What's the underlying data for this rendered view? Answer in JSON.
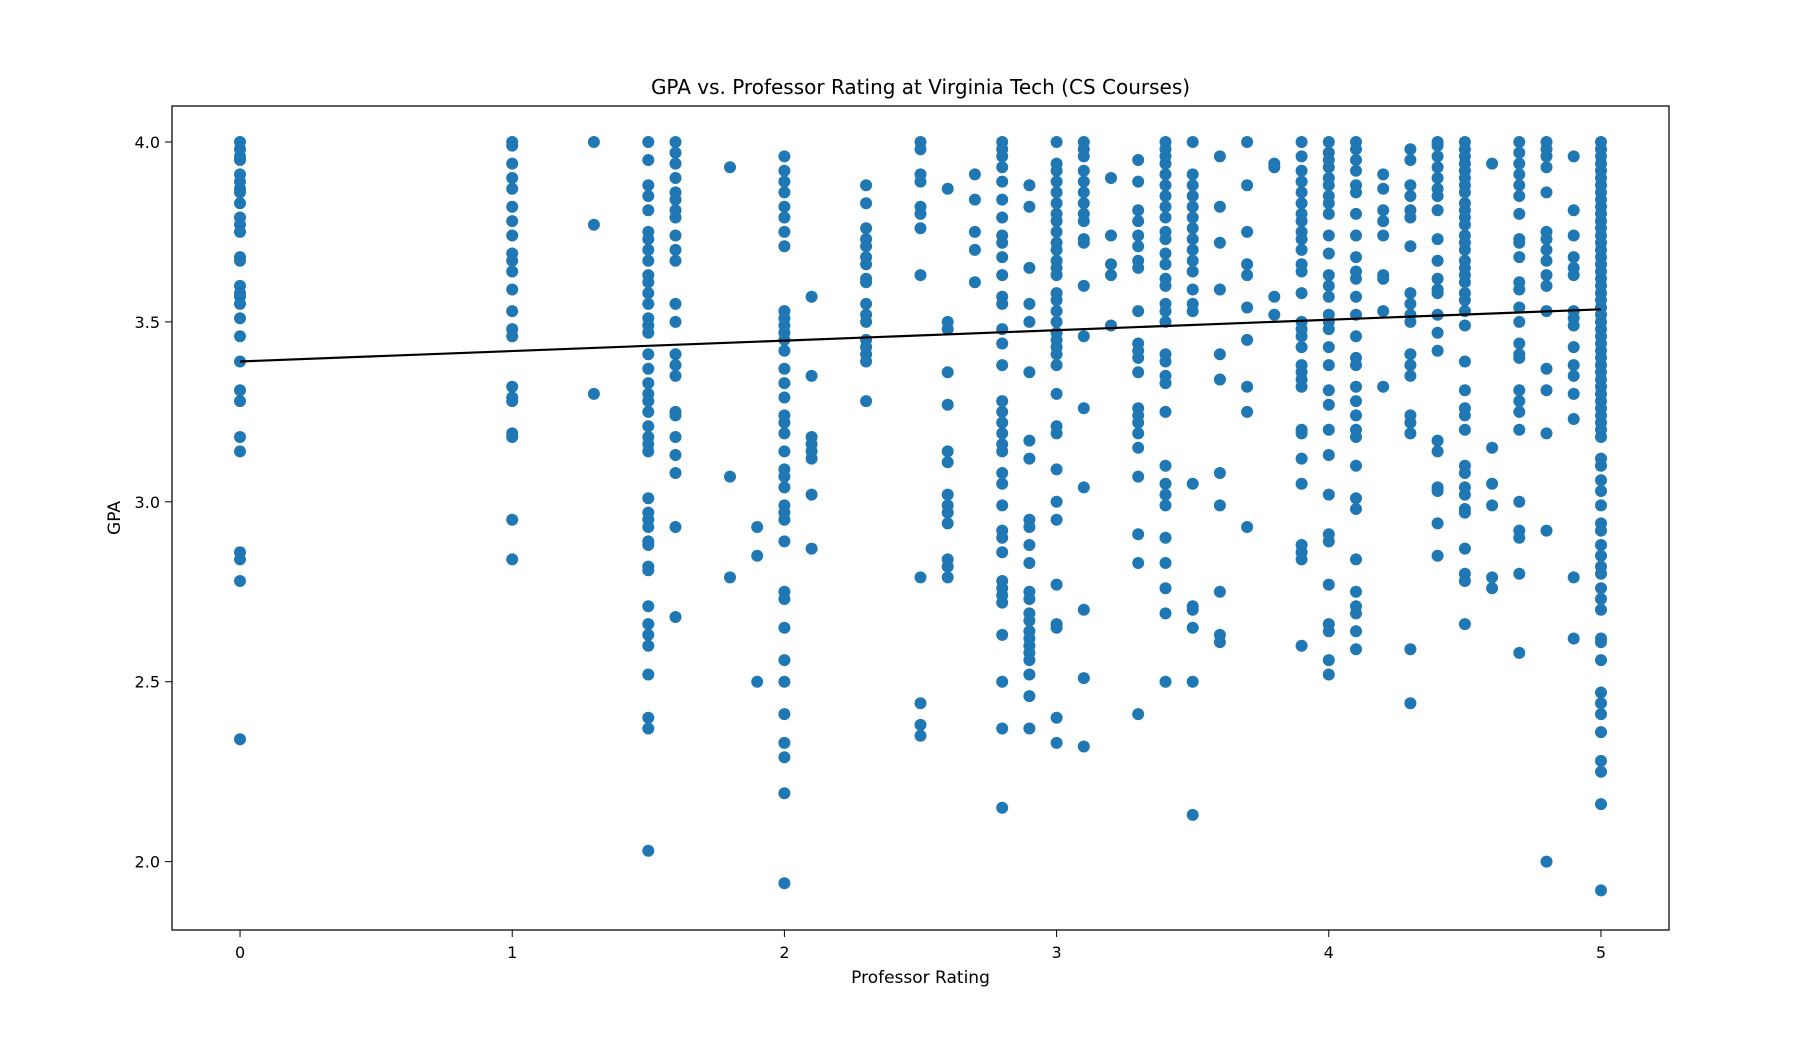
{
  "chart_data": {
    "type": "scatter",
    "title": "GPA vs. Professor Rating at Virginia Tech (CS Courses)",
    "xlabel": "Professor Rating",
    "ylabel": "GPA",
    "xlim": [
      -0.25,
      5.25
    ],
    "ylim": [
      1.81,
      4.1
    ],
    "xticks": [
      0,
      1,
      2,
      3,
      4,
      5
    ],
    "xtick_labels": [
      "0",
      "1",
      "2",
      "3",
      "4",
      "5"
    ],
    "yticks": [
      2.0,
      2.5,
      3.0,
      3.5,
      4.0
    ],
    "ytick_labels": [
      "2.0",
      "2.5",
      "3.0",
      "3.5",
      "4.0"
    ],
    "grid": false,
    "point_color": "#1f77b4",
    "trend_color": "#000000",
    "trend_line": {
      "x": [
        0,
        5
      ],
      "y": [
        3.39,
        3.535
      ]
    },
    "points": [
      {
        "x": 0,
        "y": [
          4.0,
          3.98,
          3.96,
          3.95,
          3.91,
          3.89,
          3.87,
          3.86,
          3.83,
          3.79,
          3.77,
          3.75,
          3.68,
          3.67,
          3.6,
          3.58,
          3.57,
          3.55,
          3.51,
          3.46,
          3.39,
          3.31,
          3.28,
          3.18,
          3.14,
          2.86,
          2.84,
          2.78,
          2.34
        ]
      },
      {
        "x": 1,
        "y": [
          4.0,
          3.99,
          3.94,
          3.9,
          3.87,
          3.82,
          3.78,
          3.74,
          3.69,
          3.67,
          3.64,
          3.59,
          3.53,
          3.48,
          3.46,
          3.32,
          3.29,
          3.28,
          3.19,
          3.18,
          2.95,
          2.84
        ]
      },
      {
        "x": 1.3,
        "y": [
          4.0,
          3.77,
          3.3
        ]
      },
      {
        "x": 1.5,
        "y": [
          4.0,
          3.95,
          3.88,
          3.85,
          3.81,
          3.75,
          3.73,
          3.7,
          3.67,
          3.63,
          3.61,
          3.58,
          3.55,
          3.51,
          3.49,
          3.47,
          3.41,
          3.37,
          3.33,
          3.3,
          3.28,
          3.25,
          3.21,
          3.18,
          3.16,
          3.14,
          3.01,
          2.97,
          2.95,
          2.93,
          2.89,
          2.88,
          2.82,
          2.81,
          2.71,
          2.66,
          2.63,
          2.6,
          2.52,
          2.4,
          2.37,
          2.03
        ]
      },
      {
        "x": 1.6,
        "y": [
          4.0,
          3.97,
          3.94,
          3.9,
          3.86,
          3.84,
          3.81,
          3.79,
          3.74,
          3.7,
          3.67,
          3.55,
          3.5,
          3.41,
          3.38,
          3.35,
          3.25,
          3.24,
          3.18,
          3.13,
          3.08,
          2.93,
          2.68
        ]
      },
      {
        "x": 1.8,
        "y": [
          3.93,
          3.07,
          2.79
        ]
      },
      {
        "x": 1.9,
        "y": [
          2.93,
          2.85,
          2.5
        ]
      },
      {
        "x": 2,
        "y": [
          3.96,
          3.92,
          3.89,
          3.86,
          3.82,
          3.79,
          3.75,
          3.71,
          3.53,
          3.51,
          3.49,
          3.47,
          3.45,
          3.42,
          3.37,
          3.33,
          3.29,
          3.24,
          3.22,
          3.19,
          3.14,
          3.09,
          3.07,
          3.04,
          2.99,
          2.97,
          2.95,
          2.89,
          2.75,
          2.73,
          2.65,
          2.56,
          2.5,
          2.41,
          2.33,
          2.29,
          2.19,
          1.94
        ]
      },
      {
        "x": 2.1,
        "y": [
          3.57,
          3.35,
          3.18,
          3.16,
          3.14,
          3.12,
          3.02,
          2.87
        ]
      },
      {
        "x": 2.3,
        "y": [
          3.88,
          3.83,
          3.76,
          3.73,
          3.71,
          3.68,
          3.66,
          3.62,
          3.61,
          3.55,
          3.52,
          3.5,
          3.45,
          3.43,
          3.41,
          3.39,
          3.28
        ]
      },
      {
        "x": 2.5,
        "y": [
          4.0,
          3.98,
          3.91,
          3.89,
          3.82,
          3.8,
          3.76,
          3.63,
          2.79,
          2.44,
          2.38,
          2.35
        ]
      },
      {
        "x": 2.6,
        "y": [
          3.87,
          3.5,
          3.48,
          3.36,
          3.27,
          3.14,
          3.11,
          3.02,
          2.99,
          2.97,
          2.94,
          2.84,
          2.82,
          2.79
        ]
      },
      {
        "x": 2.7,
        "y": [
          3.91,
          3.84,
          3.75,
          3.7,
          3.61
        ]
      },
      {
        "x": 2.8,
        "y": [
          4.0,
          3.98,
          3.96,
          3.93,
          3.89,
          3.84,
          3.79,
          3.74,
          3.72,
          3.68,
          3.63,
          3.57,
          3.55,
          3.48,
          3.44,
          3.38,
          3.28,
          3.25,
          3.22,
          3.19,
          3.16,
          3.14,
          3.08,
          3.05,
          2.99,
          2.92,
          2.9,
          2.86,
          2.78,
          2.76,
          2.74,
          2.72,
          2.63,
          2.5,
          2.37,
          2.15
        ]
      },
      {
        "x": 2.9,
        "y": [
          3.88,
          3.82,
          3.65,
          3.55,
          3.5,
          3.36,
          3.17,
          3.12,
          2.95,
          2.93,
          2.88,
          2.83,
          2.75,
          2.73,
          2.69,
          2.67,
          2.64,
          2.62,
          2.6,
          2.58,
          2.56,
          2.52,
          2.46,
          2.37
        ]
      },
      {
        "x": 3,
        "y": [
          4.0,
          3.94,
          3.92,
          3.89,
          3.86,
          3.83,
          3.8,
          3.78,
          3.75,
          3.72,
          3.7,
          3.67,
          3.65,
          3.63,
          3.58,
          3.56,
          3.53,
          3.5,
          3.47,
          3.45,
          3.43,
          3.41,
          3.38,
          3.3,
          3.21,
          3.19,
          3.09,
          3.0,
          2.95,
          2.77,
          2.66,
          2.65,
          2.4,
          2.33
        ]
      },
      {
        "x": 3.1,
        "y": [
          4.0,
          3.98,
          3.96,
          3.92,
          3.89,
          3.86,
          3.83,
          3.8,
          3.78,
          3.73,
          3.72,
          3.6,
          3.46,
          3.26,
          3.04,
          2.7,
          2.51,
          2.32
        ]
      },
      {
        "x": 3.2,
        "y": [
          3.9,
          3.74,
          3.66,
          3.63,
          3.49
        ]
      },
      {
        "x": 3.3,
        "y": [
          3.95,
          3.89,
          3.81,
          3.78,
          3.74,
          3.71,
          3.67,
          3.65,
          3.53,
          3.44,
          3.42,
          3.4,
          3.36,
          3.26,
          3.24,
          3.22,
          3.19,
          3.15,
          3.07,
          2.91,
          2.83,
          2.41
        ]
      },
      {
        "x": 3.4,
        "y": [
          4.0,
          3.98,
          3.96,
          3.94,
          3.91,
          3.88,
          3.85,
          3.82,
          3.79,
          3.75,
          3.73,
          3.69,
          3.66,
          3.62,
          3.6,
          3.55,
          3.53,
          3.5,
          3.41,
          3.39,
          3.35,
          3.33,
          3.25,
          3.1,
          3.05,
          3.02,
          2.99,
          2.9,
          2.83,
          2.76,
          2.69,
          2.5
        ]
      },
      {
        "x": 3.5,
        "y": [
          4.0,
          3.91,
          3.88,
          3.85,
          3.82,
          3.79,
          3.76,
          3.73,
          3.7,
          3.67,
          3.64,
          3.59,
          3.55,
          3.53,
          3.05,
          2.71,
          2.7,
          2.65,
          2.5,
          2.13
        ]
      },
      {
        "x": 3.6,
        "y": [
          3.96,
          3.82,
          3.72,
          3.59,
          3.41,
          3.34,
          3.08,
          2.99,
          2.75,
          2.63,
          2.61
        ]
      },
      {
        "x": 3.7,
        "y": [
          4.0,
          3.88,
          3.75,
          3.66,
          3.63,
          3.54,
          3.45,
          3.32,
          3.25,
          2.93
        ]
      },
      {
        "x": 3.8,
        "y": [
          3.94,
          3.93,
          3.57,
          3.52
        ]
      },
      {
        "x": 3.9,
        "y": [
          4.0,
          3.96,
          3.92,
          3.89,
          3.86,
          3.83,
          3.8,
          3.78,
          3.75,
          3.73,
          3.7,
          3.66,
          3.64,
          3.58,
          3.5,
          3.48,
          3.46,
          3.43,
          3.38,
          3.36,
          3.34,
          3.32,
          3.2,
          3.19,
          3.12,
          3.05,
          2.88,
          2.86,
          2.84,
          2.6
        ]
      },
      {
        "x": 4,
        "y": [
          4.0,
          3.97,
          3.95,
          3.93,
          3.9,
          3.88,
          3.85,
          3.83,
          3.8,
          3.74,
          3.69,
          3.63,
          3.6,
          3.57,
          3.52,
          3.5,
          3.48,
          3.43,
          3.38,
          3.31,
          3.27,
          3.2,
          3.13,
          3.02,
          2.91,
          2.89,
          2.77,
          2.66,
          2.64,
          2.56,
          2.52
        ]
      },
      {
        "x": 4.1,
        "y": [
          4.0,
          3.98,
          3.95,
          3.92,
          3.88,
          3.86,
          3.8,
          3.74,
          3.68,
          3.64,
          3.62,
          3.57,
          3.52,
          3.46,
          3.4,
          3.38,
          3.32,
          3.28,
          3.24,
          3.2,
          3.18,
          3.1,
          3.01,
          2.98,
          2.84,
          2.75,
          2.71,
          2.69,
          2.64,
          2.59
        ]
      },
      {
        "x": 4.2,
        "y": [
          3.91,
          3.87,
          3.81,
          3.78,
          3.74,
          3.63,
          3.62,
          3.53,
          3.32
        ]
      },
      {
        "x": 4.3,
        "y": [
          3.98,
          3.95,
          3.88,
          3.85,
          3.81,
          3.79,
          3.71,
          3.58,
          3.55,
          3.52,
          3.5,
          3.41,
          3.38,
          3.35,
          3.24,
          3.22,
          3.19,
          2.59,
          2.44
        ]
      },
      {
        "x": 4.4,
        "y": [
          4.0,
          3.99,
          3.96,
          3.93,
          3.9,
          3.87,
          3.85,
          3.81,
          3.73,
          3.67,
          3.62,
          3.59,
          3.58,
          3.52,
          3.47,
          3.42,
          3.17,
          3.14,
          3.04,
          3.03,
          2.94,
          2.85
        ]
      },
      {
        "x": 4.5,
        "y": [
          4.0,
          3.98,
          3.96,
          3.94,
          3.92,
          3.9,
          3.88,
          3.86,
          3.83,
          3.81,
          3.79,
          3.77,
          3.74,
          3.72,
          3.7,
          3.67,
          3.65,
          3.63,
          3.61,
          3.58,
          3.56,
          3.53,
          3.49,
          3.39,
          3.31,
          3.26,
          3.24,
          3.2,
          3.1,
          3.08,
          3.04,
          3.02,
          2.98,
          2.97,
          2.87,
          2.8,
          2.78,
          2.66
        ]
      },
      {
        "x": 4.6,
        "y": [
          3.94,
          3.15,
          3.05,
          2.99,
          2.79,
          2.76
        ]
      },
      {
        "x": 4.7,
        "y": [
          4.0,
          3.97,
          3.94,
          3.91,
          3.88,
          3.85,
          3.8,
          3.73,
          3.72,
          3.68,
          3.61,
          3.59,
          3.54,
          3.5,
          3.44,
          3.41,
          3.4,
          3.31,
          3.28,
          3.25,
          3.2,
          3.0,
          2.92,
          2.9,
          2.8,
          2.58
        ]
      },
      {
        "x": 4.8,
        "y": [
          4.0,
          3.98,
          3.96,
          3.93,
          3.86,
          3.75,
          3.73,
          3.7,
          3.67,
          3.63,
          3.6,
          3.53,
          3.37,
          3.31,
          3.19,
          2.92,
          2.0
        ]
      },
      {
        "x": 4.9,
        "y": [
          3.96,
          3.81,
          3.74,
          3.68,
          3.65,
          3.63,
          3.53,
          3.51,
          3.49,
          3.43,
          3.38,
          3.35,
          3.3,
          3.23,
          2.79,
          2.62
        ]
      },
      {
        "x": 5,
        "y": [
          4.0,
          3.98,
          3.96,
          3.94,
          3.92,
          3.9,
          3.88,
          3.86,
          3.84,
          3.82,
          3.8,
          3.78,
          3.76,
          3.74,
          3.72,
          3.7,
          3.68,
          3.66,
          3.64,
          3.62,
          3.6,
          3.58,
          3.56,
          3.54,
          3.52,
          3.5,
          3.48,
          3.46,
          3.44,
          3.42,
          3.4,
          3.38,
          3.36,
          3.34,
          3.32,
          3.3,
          3.28,
          3.26,
          3.24,
          3.22,
          3.2,
          3.18,
          3.12,
          3.1,
          3.06,
          3.03,
          2.99,
          2.94,
          2.92,
          2.88,
          2.85,
          2.82,
          2.8,
          2.76,
          2.73,
          2.7,
          2.62,
          2.61,
          2.56,
          2.47,
          2.44,
          2.41,
          2.36,
          2.28,
          2.25,
          2.16,
          1.92
        ]
      }
    ]
  }
}
